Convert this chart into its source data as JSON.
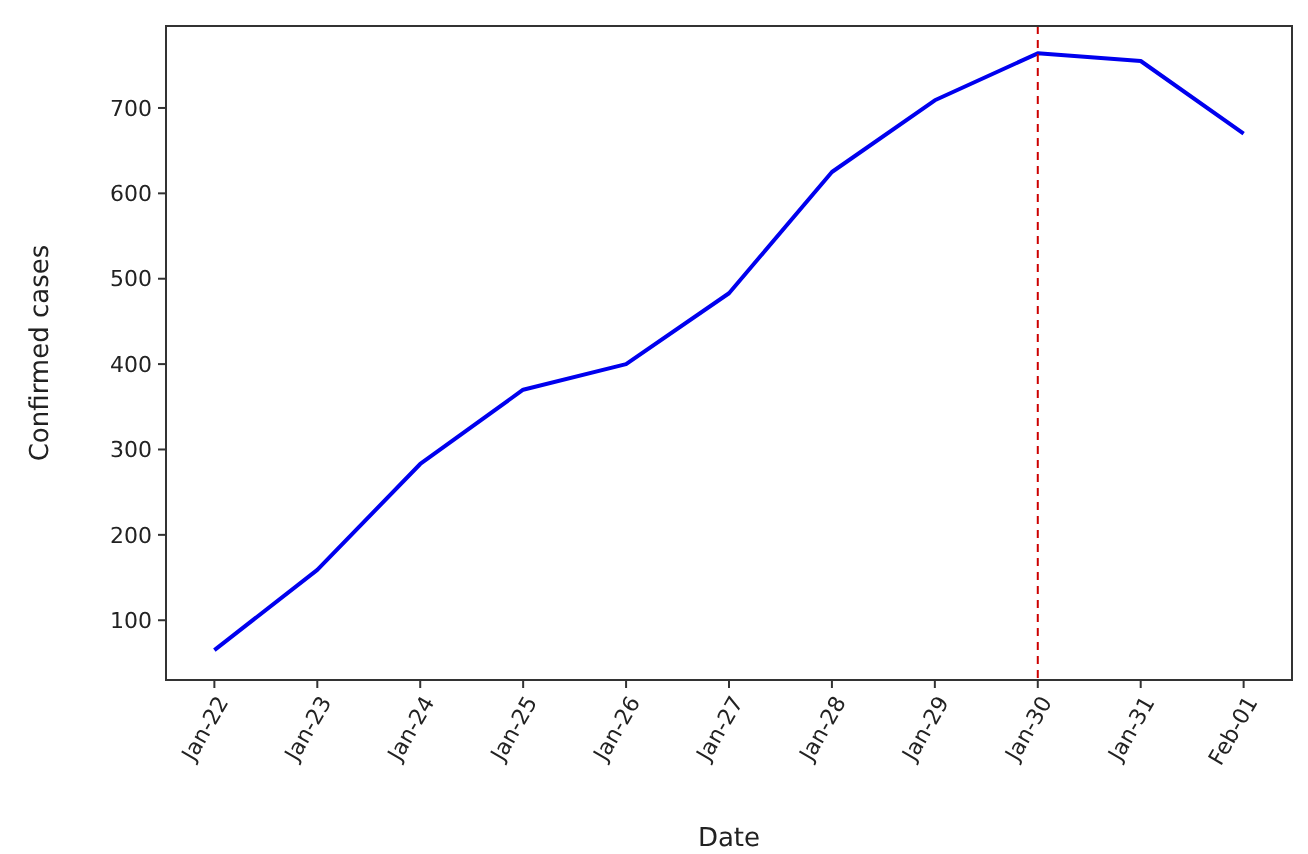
{
  "chart_data": {
    "type": "line",
    "xlabel": "Date",
    "ylabel": "Confirmed cases",
    "categories": [
      "Jan-22",
      "Jan-23",
      "Jan-24",
      "Jan-25",
      "Jan-26",
      "Jan-27",
      "Jan-28",
      "Jan-29",
      "Jan-30",
      "Jan-31",
      "Feb-01"
    ],
    "series": [
      {
        "color": "#0000ee",
        "values": [
          65,
          159,
          283,
          370,
          400,
          483,
          625,
          709,
          764,
          755,
          670
        ]
      }
    ],
    "ylim": [
      30,
      796
    ],
    "yticks": [
      100,
      200,
      300,
      400,
      500,
      600,
      700
    ],
    "ref_lines": [
      {
        "axis": "x",
        "value": "Jan-30",
        "color": "#cc0000",
        "line_style": "dashed"
      }
    ],
    "grid": false,
    "marker": "none",
    "line_style": "solid"
  }
}
